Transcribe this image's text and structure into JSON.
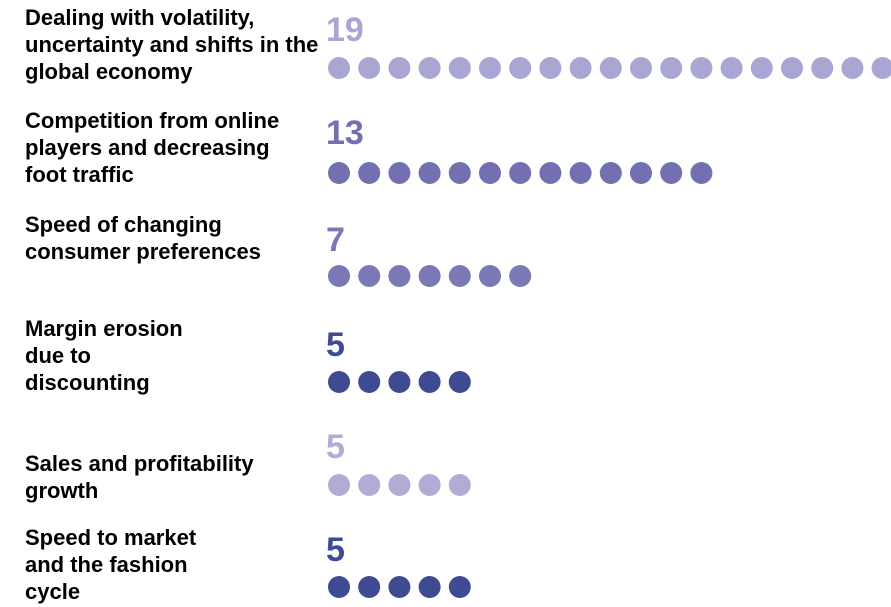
{
  "chart_data": {
    "type": "dot",
    "categories": [
      "Dealing with volatility, uncertainty and shifts in the global economy",
      "Competition from online players and decreasing foot traffic",
      "Speed of changing consumer preferences",
      "Margin erosion due to discounting",
      "Sales and profitability growth",
      "Speed to market and the fashion cycle"
    ],
    "values": [
      19,
      13,
      7,
      5,
      5,
      5
    ],
    "colors": [
      "#aaa6d3",
      "#7270b0",
      "#7b79b5",
      "#3e4a92",
      "#b0acd6",
      "#3e4a92"
    ]
  }
}
